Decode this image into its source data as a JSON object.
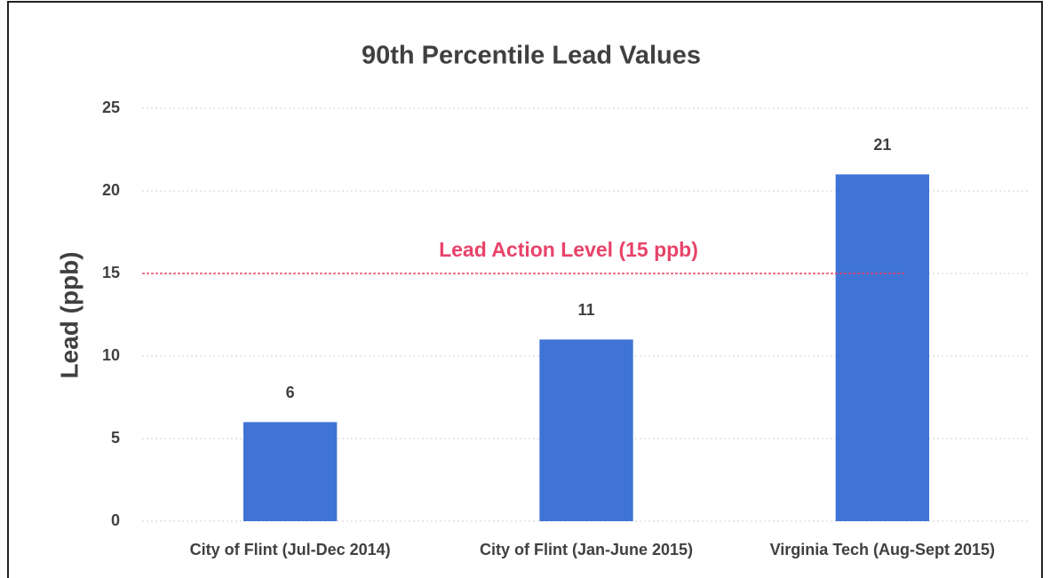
{
  "chart_data": {
    "type": "bar",
    "title": "90th Percentile Lead Values",
    "y_label": "Lead (ppb)",
    "categories": [
      "City of Flint (Jul-Dec 2014)",
      "City of Flint (Jan-June 2015)",
      "Virginia Tech (Aug-Sept 2015)"
    ],
    "values": [
      6,
      11,
      21
    ],
    "color": "#3f74d6",
    "ylim": [
      0,
      25
    ],
    "yticks": [
      0,
      5,
      10,
      15,
      20,
      25
    ],
    "grid": true,
    "reference_line": {
      "value": 15,
      "label": "Lead Action Level (15 ppb)",
      "color": "#e8436a"
    }
  }
}
